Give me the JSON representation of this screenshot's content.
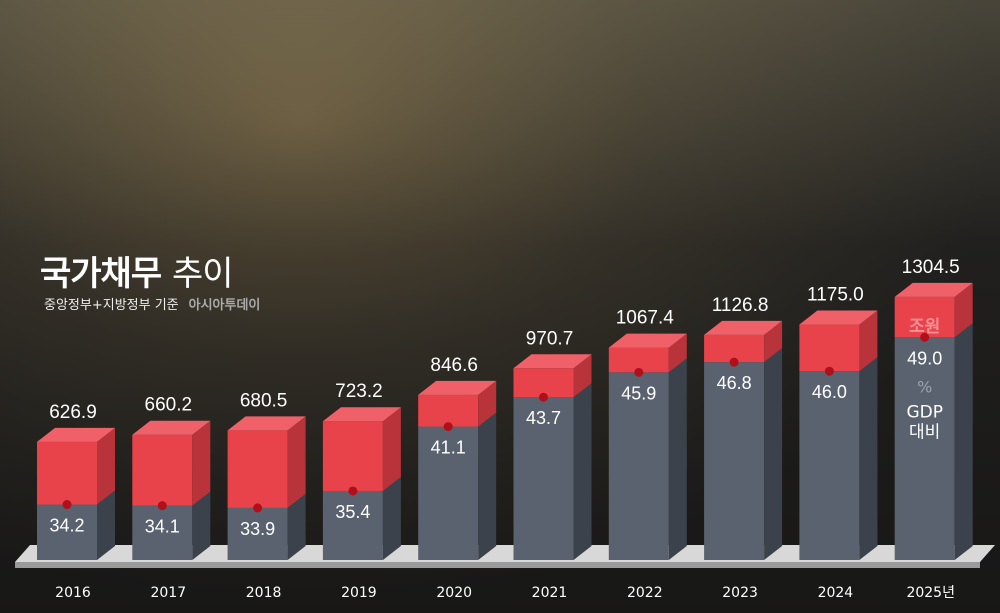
{
  "chart_data": {
    "type": "bar",
    "title_bold": "국가채무",
    "title_rest": "추이",
    "subtitle": "중앙정부+지방정부 기준",
    "source": "아시아투데이",
    "categories": [
      "2016",
      "2017",
      "2018",
      "2019",
      "2020",
      "2021",
      "2022",
      "2023",
      "2024",
      "2025년"
    ],
    "series": [
      {
        "name": "조원",
        "values": [
          626.9,
          660.2,
          680.5,
          723.2,
          846.6,
          970.7,
          1067.4,
          1126.8,
          1175.0,
          1304.5
        ]
      },
      {
        "name": "GDP 대비 %",
        "values": [
          34.2,
          34.1,
          33.9,
          35.4,
          41.1,
          43.7,
          45.9,
          46.8,
          46.0,
          49.0
        ]
      }
    ],
    "debt_labels": [
      "626.9",
      "660.2",
      "680.5",
      "723.2",
      "846.6",
      "970.7",
      "1067.4",
      "1126.8",
      "1175.0",
      "1304.5"
    ],
    "ratio_labels": [
      "34.2",
      "34.1",
      "33.9",
      "35.4",
      "41.1",
      "43.7",
      "45.9",
      "46.8",
      "46.0",
      "49.0"
    ],
    "unit_debt": "조원",
    "unit_pct": "%",
    "unit_gdp_1": "GDP",
    "unit_gdp_2": "대비",
    "colors": {
      "debt": "#e8434b",
      "ratio": "#5a6270",
      "dot": "#b0101a"
    }
  }
}
